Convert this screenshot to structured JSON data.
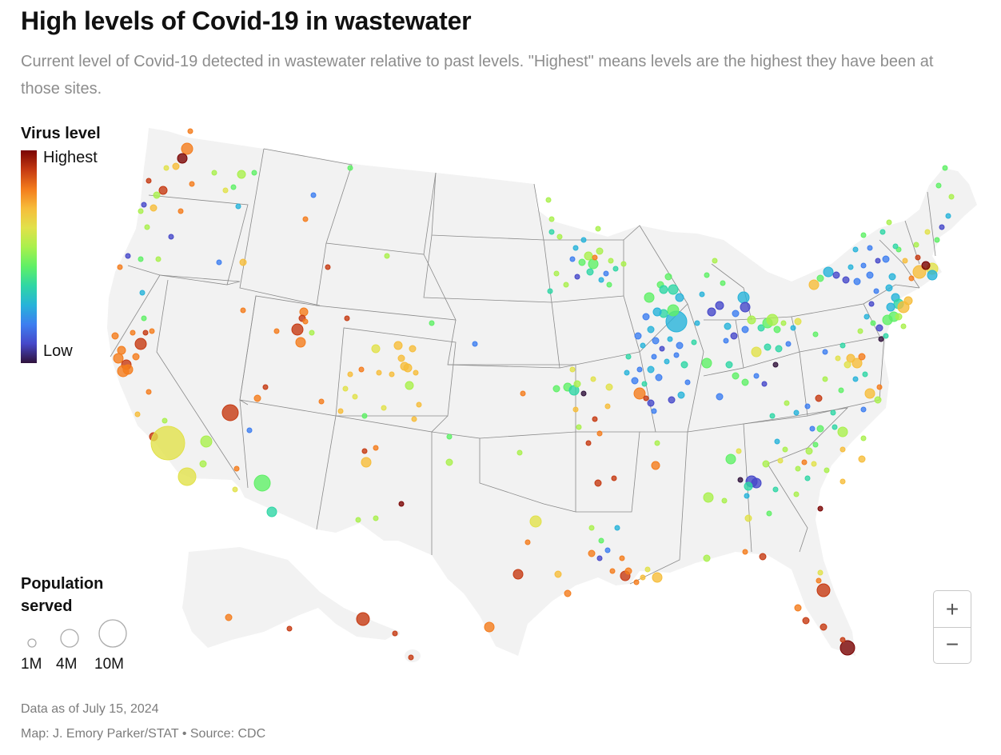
{
  "header": {
    "title": "High levels of Covid-19 in wastewater",
    "subtitle": "Current level of Covid-19 detected in wastewater relative to past levels. \"Highest\" means levels are the highest they have been at those sites."
  },
  "legend": {
    "title": "Virus level",
    "high_label": "Highest",
    "low_label": "Low",
    "population_title": "Population served",
    "sizes": [
      "1M",
      "4M",
      "10M"
    ]
  },
  "controls": {
    "zoom_in": "+",
    "zoom_out": "−"
  },
  "footer": {
    "date_note": "Data as of July 15, 2024",
    "credit": "Map: J. Emory Parker/STAT • Source: CDC"
  },
  "colors": {
    "land": "#f2f2f2",
    "borders": "#8a8a8a",
    "highest": "#7a0403",
    "low": "#30123b"
  }
}
